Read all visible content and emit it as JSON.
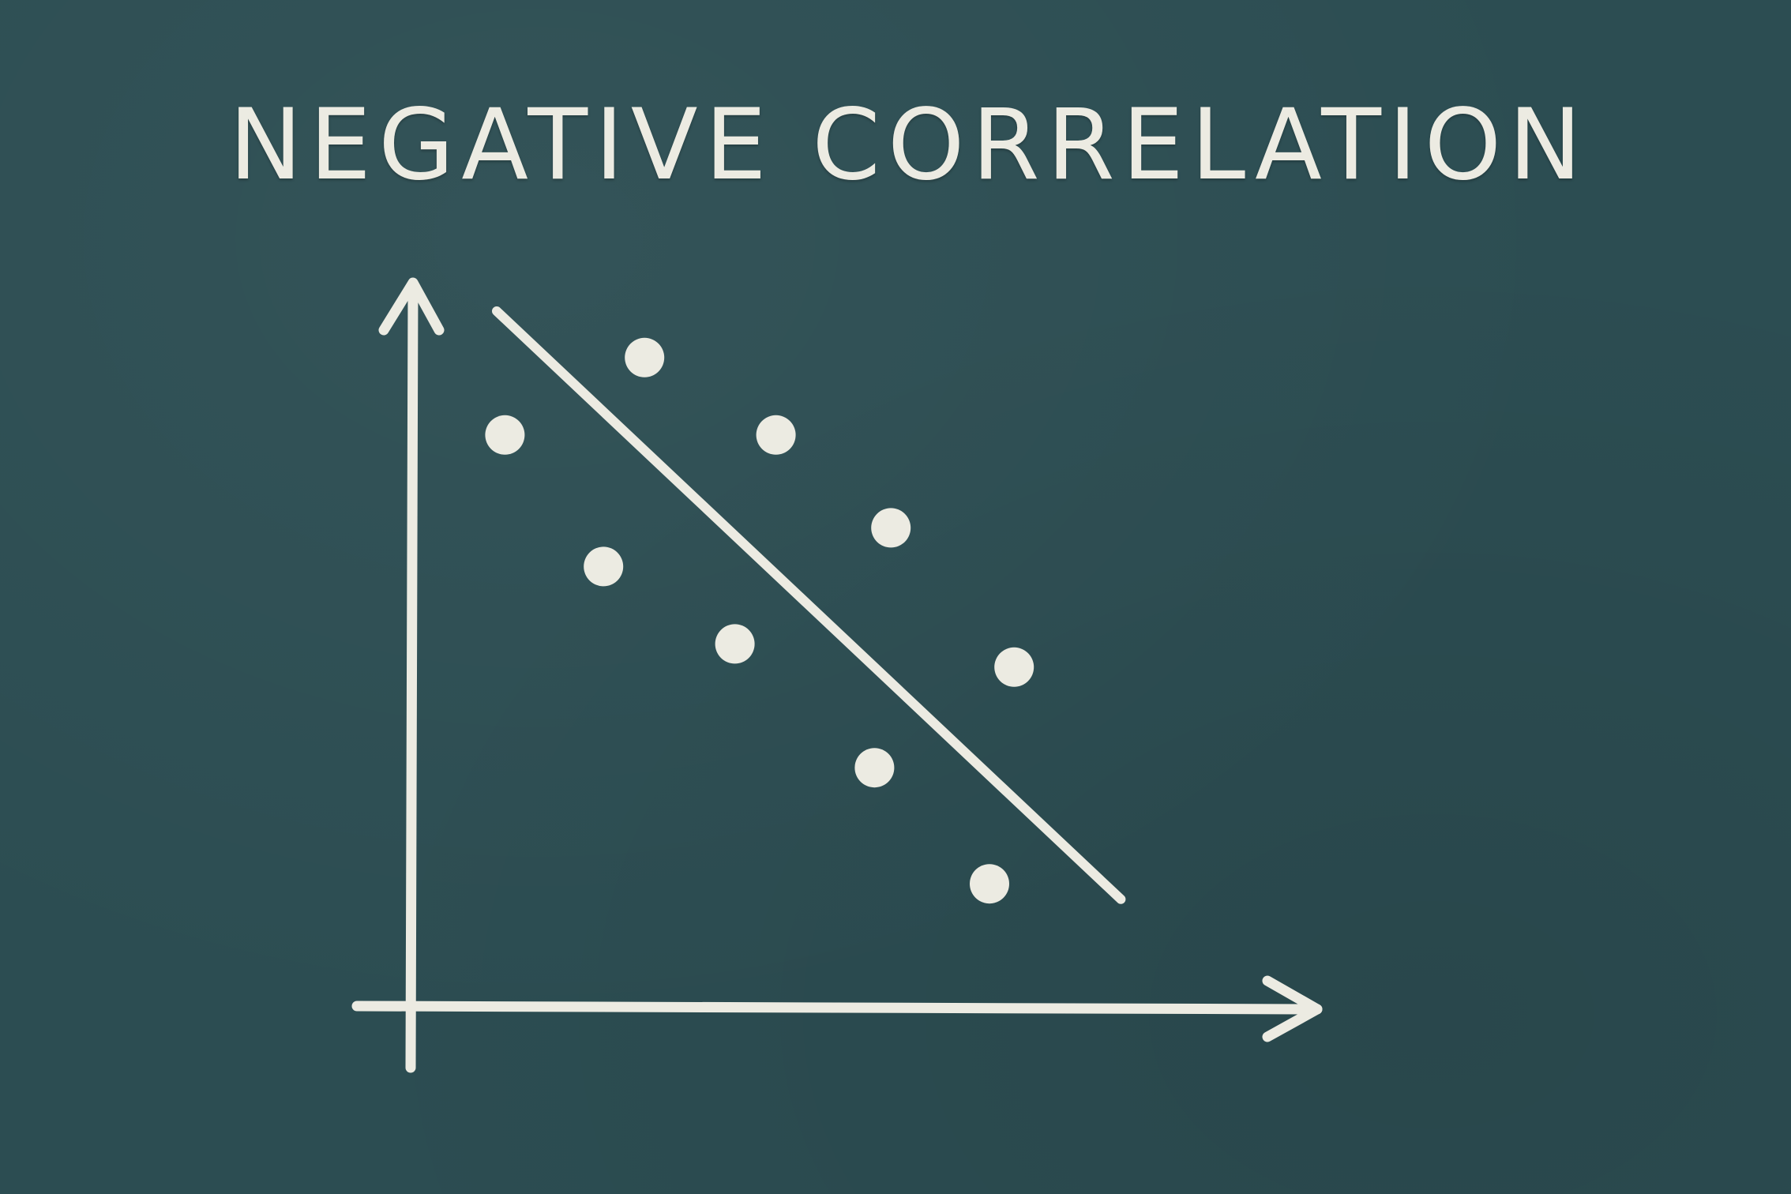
{
  "chart_data": {
    "type": "scatter",
    "title": "NEGATIVE CORRELATION",
    "xlabel": "",
    "ylabel": "",
    "grid": false,
    "axis_ticks": false,
    "xlim": [
      0,
      10
    ],
    "ylim": [
      0,
      10
    ],
    "points": [
      {
        "x": 1.1,
        "y": 7.4
      },
      {
        "x": 2.8,
        "y": 8.4
      },
      {
        "x": 2.3,
        "y": 5.7
      },
      {
        "x": 4.4,
        "y": 7.4
      },
      {
        "x": 3.9,
        "y": 4.7
      },
      {
        "x": 5.8,
        "y": 6.2
      },
      {
        "x": 5.6,
        "y": 3.1
      },
      {
        "x": 7.3,
        "y": 4.4
      },
      {
        "x": 7.0,
        "y": 1.6
      }
    ],
    "trend_line": {
      "x": [
        1.0,
        8.6
      ],
      "y": [
        9.0,
        1.4
      ]
    },
    "colors": {
      "background": "#2c4d52",
      "chalk": "#ecebe2"
    }
  }
}
